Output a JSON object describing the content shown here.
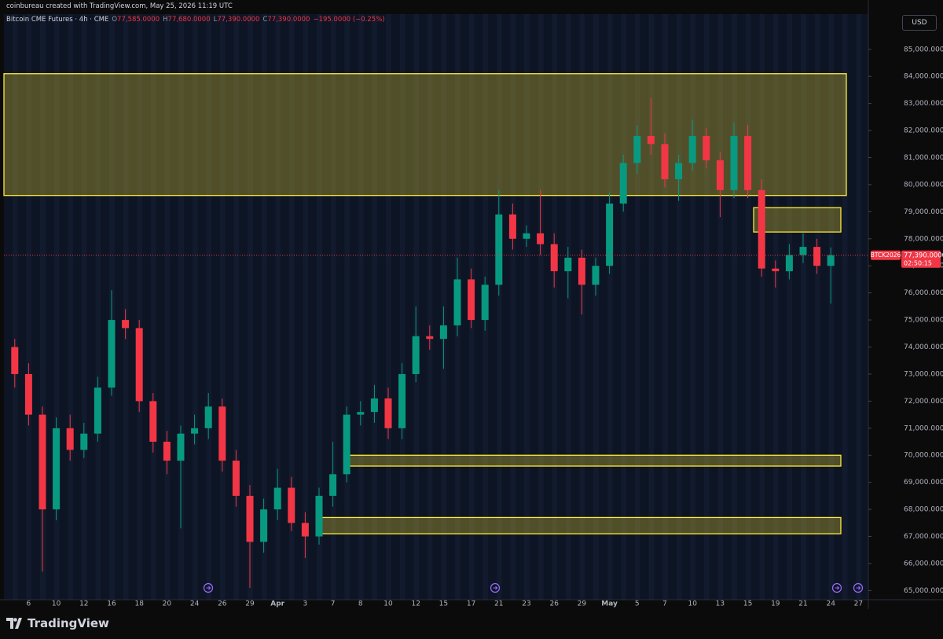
{
  "header": {
    "author": "coinbureau created with TradingView.com, May 25, 2026 11:19 UTC",
    "symbol": "Bitcoin CME Futures · 4h · CME",
    "quote": [
      {
        "key": "O",
        "value": "77,585.0000"
      },
      {
        "key": "H",
        "value": "77,680.0000"
      },
      {
        "key": "L",
        "value": "77,390.0000"
      },
      {
        "key": "C",
        "value": "77,390.0000"
      }
    ],
    "change": "−195.0000 (−0.25%)",
    "currency": "USD",
    "brand": "TradingView"
  },
  "chart_data": {
    "type": "candlestick",
    "categories": [
      null,
      "6",
      null,
      "10",
      null,
      "12",
      null,
      "16",
      null,
      "18",
      null,
      "20",
      null,
      "24",
      null,
      "26",
      null,
      "29",
      null,
      "Apr",
      null,
      "3",
      null,
      "7",
      null,
      "8",
      null,
      "10",
      null,
      "12",
      null,
      "15",
      null,
      "17",
      null,
      "21",
      null,
      "23",
      null,
      "26",
      null,
      "29",
      null,
      "May",
      null,
      "5",
      null,
      "7",
      null,
      "10",
      null,
      "13",
      null,
      "15",
      null,
      "19",
      null,
      "21",
      null,
      "24",
      null,
      "27"
    ],
    "open": [
      74000,
      73000,
      71500,
      68000,
      71000,
      70200,
      70800,
      72500,
      75000,
      74700,
      72000,
      70500,
      69800,
      70800,
      71000,
      71800,
      69800,
      68500,
      66800,
      68000,
      68800,
      67500,
      67000,
      68500,
      69300,
      71500,
      71600,
      72100,
      71000,
      73000,
      74400,
      74300,
      74800,
      76500,
      75000,
      76300,
      78900,
      78000,
      78200,
      77800,
      76800,
      77300,
      76300,
      77000,
      79300,
      80800,
      81800,
      81500,
      80200,
      80800,
      81800,
      80900,
      79800,
      81800,
      79800,
      76900,
      76800,
      77400,
      77700,
      77000,
      null,
      null
    ],
    "high": [
      74300,
      73400,
      71800,
      71400,
      71500,
      71200,
      72900,
      76100,
      75400,
      75000,
      72300,
      70900,
      71100,
      71500,
      72300,
      72100,
      70200,
      68900,
      68400,
      69500,
      69200,
      67900,
      68800,
      70500,
      71800,
      72000,
      72600,
      72500,
      73400,
      75500,
      74800,
      75500,
      77300,
      76900,
      76600,
      79800,
      79300,
      78500,
      79800,
      78200,
      77700,
      77600,
      77300,
      79700,
      81100,
      82200,
      83200,
      81900,
      81100,
      82400,
      82100,
      81200,
      82300,
      82200,
      80200,
      77200,
      77800,
      78200,
      78000,
      77680,
      null,
      null
    ],
    "low": [
      72500,
      71100,
      65700,
      67600,
      69800,
      69900,
      70500,
      72200,
      74300,
      71600,
      70100,
      69300,
      67300,
      70400,
      70600,
      69400,
      68100,
      65100,
      66400,
      67600,
      67200,
      66200,
      66700,
      68100,
      69000,
      71100,
      71200,
      70600,
      70600,
      72700,
      73900,
      73200,
      74400,
      74700,
      74600,
      75900,
      77600,
      77700,
      77400,
      76200,
      75800,
      75200,
      75900,
      76700,
      79000,
      80400,
      81100,
      79900,
      79400,
      80500,
      80600,
      78800,
      79500,
      79500,
      76600,
      76200,
      76500,
      77100,
      76700,
      75600,
      null,
      null
    ],
    "close": [
      73000,
      71500,
      68000,
      71000,
      70200,
      70800,
      72500,
      75000,
      74700,
      72000,
      70500,
      69800,
      70800,
      71000,
      71800,
      69800,
      68500,
      66800,
      68000,
      68800,
      67500,
      67000,
      68500,
      69300,
      71500,
      71600,
      72100,
      71000,
      73000,
      74400,
      74300,
      74800,
      76500,
      75000,
      76300,
      78900,
      78000,
      78200,
      77800,
      76800,
      77300,
      76300,
      77000,
      79300,
      80800,
      81800,
      81500,
      80200,
      80800,
      81800,
      80900,
      79800,
      81800,
      79800,
      76900,
      76800,
      77400,
      77700,
      77000,
      77390,
      null,
      null
    ],
    "up_color": "#089981",
    "down_color": "#f23645",
    "ylim": [
      64750,
      86300
    ],
    "yticks": [
      {
        "value": 65000,
        "label": "65,000.0000"
      },
      {
        "value": 66000,
        "label": "66,000.0000"
      },
      {
        "value": 67000,
        "label": "67,000.0000"
      },
      {
        "value": 68000,
        "label": "68,000.0000"
      },
      {
        "value": 69000,
        "label": "69,000.0000"
      },
      {
        "value": 70000,
        "label": "70,000.0000"
      },
      {
        "value": 71000,
        "label": "71,000.0000"
      },
      {
        "value": 72000,
        "label": "72,000.0000"
      },
      {
        "value": 73000,
        "label": "73,000.0000"
      },
      {
        "value": 74000,
        "label": "74,000.0000"
      },
      {
        "value": 75000,
        "label": "75,000.0000"
      },
      {
        "value": 76000,
        "label": "76,000.0000"
      },
      {
        "value": 77000,
        "label": "77,000.0000"
      },
      {
        "value": 78000,
        "label": "78,000.0000"
      },
      {
        "value": 79000,
        "label": "79,000.0000"
      },
      {
        "value": 80000,
        "label": "80,000.0000"
      },
      {
        "value": 81000,
        "label": "81,000.0000"
      },
      {
        "value": 82000,
        "label": "82,000.0000"
      },
      {
        "value": 83000,
        "label": "83,000.0000"
      },
      {
        "value": 84000,
        "label": "84,000.0000"
      },
      {
        "value": 85000,
        "label": "85,000.0000"
      }
    ],
    "zones": [
      {
        "high": 84100,
        "low": 79600
      },
      {
        "high": 79150,
        "low": 78250
      },
      {
        "high": 70000,
        "low": 69600
      },
      {
        "high": 67700,
        "low": 67100
      }
    ],
    "zone_color": "#ffeb3b",
    "last_price": {
      "value": 77390,
      "label": "77,390.0000"
    },
    "contract": "BTCK2026",
    "countdown": "02:50:15"
  }
}
